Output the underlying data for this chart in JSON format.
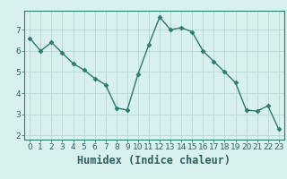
{
  "x": [
    0,
    1,
    2,
    3,
    4,
    5,
    6,
    7,
    8,
    9,
    10,
    11,
    12,
    13,
    14,
    15,
    16,
    17,
    18,
    19,
    20,
    21,
    22,
    23
  ],
  "y": [
    6.6,
    6.0,
    6.4,
    5.9,
    5.4,
    5.1,
    4.7,
    4.4,
    3.3,
    3.2,
    4.9,
    6.3,
    7.6,
    7.0,
    7.1,
    6.9,
    6.0,
    5.5,
    5.0,
    4.5,
    3.2,
    3.15,
    3.4,
    2.3
  ],
  "line_color": "#2d7a6e",
  "marker": "D",
  "marker_size": 2.5,
  "bg_color": "#d8f0ee",
  "grid_color": "#b8d8d4",
  "xlabel": "Humidex (Indice chaleur)",
  "xlim": [
    -0.5,
    23.5
  ],
  "ylim": [
    1.8,
    7.9
  ],
  "yticks": [
    2,
    3,
    4,
    5,
    6,
    7
  ],
  "xticks": [
    0,
    1,
    2,
    3,
    4,
    5,
    6,
    7,
    8,
    9,
    10,
    11,
    12,
    13,
    14,
    15,
    16,
    17,
    18,
    19,
    20,
    21,
    22,
    23
  ],
  "tick_label_fontsize": 6.5,
  "xlabel_fontsize": 8.5,
  "line_width": 1.0
}
